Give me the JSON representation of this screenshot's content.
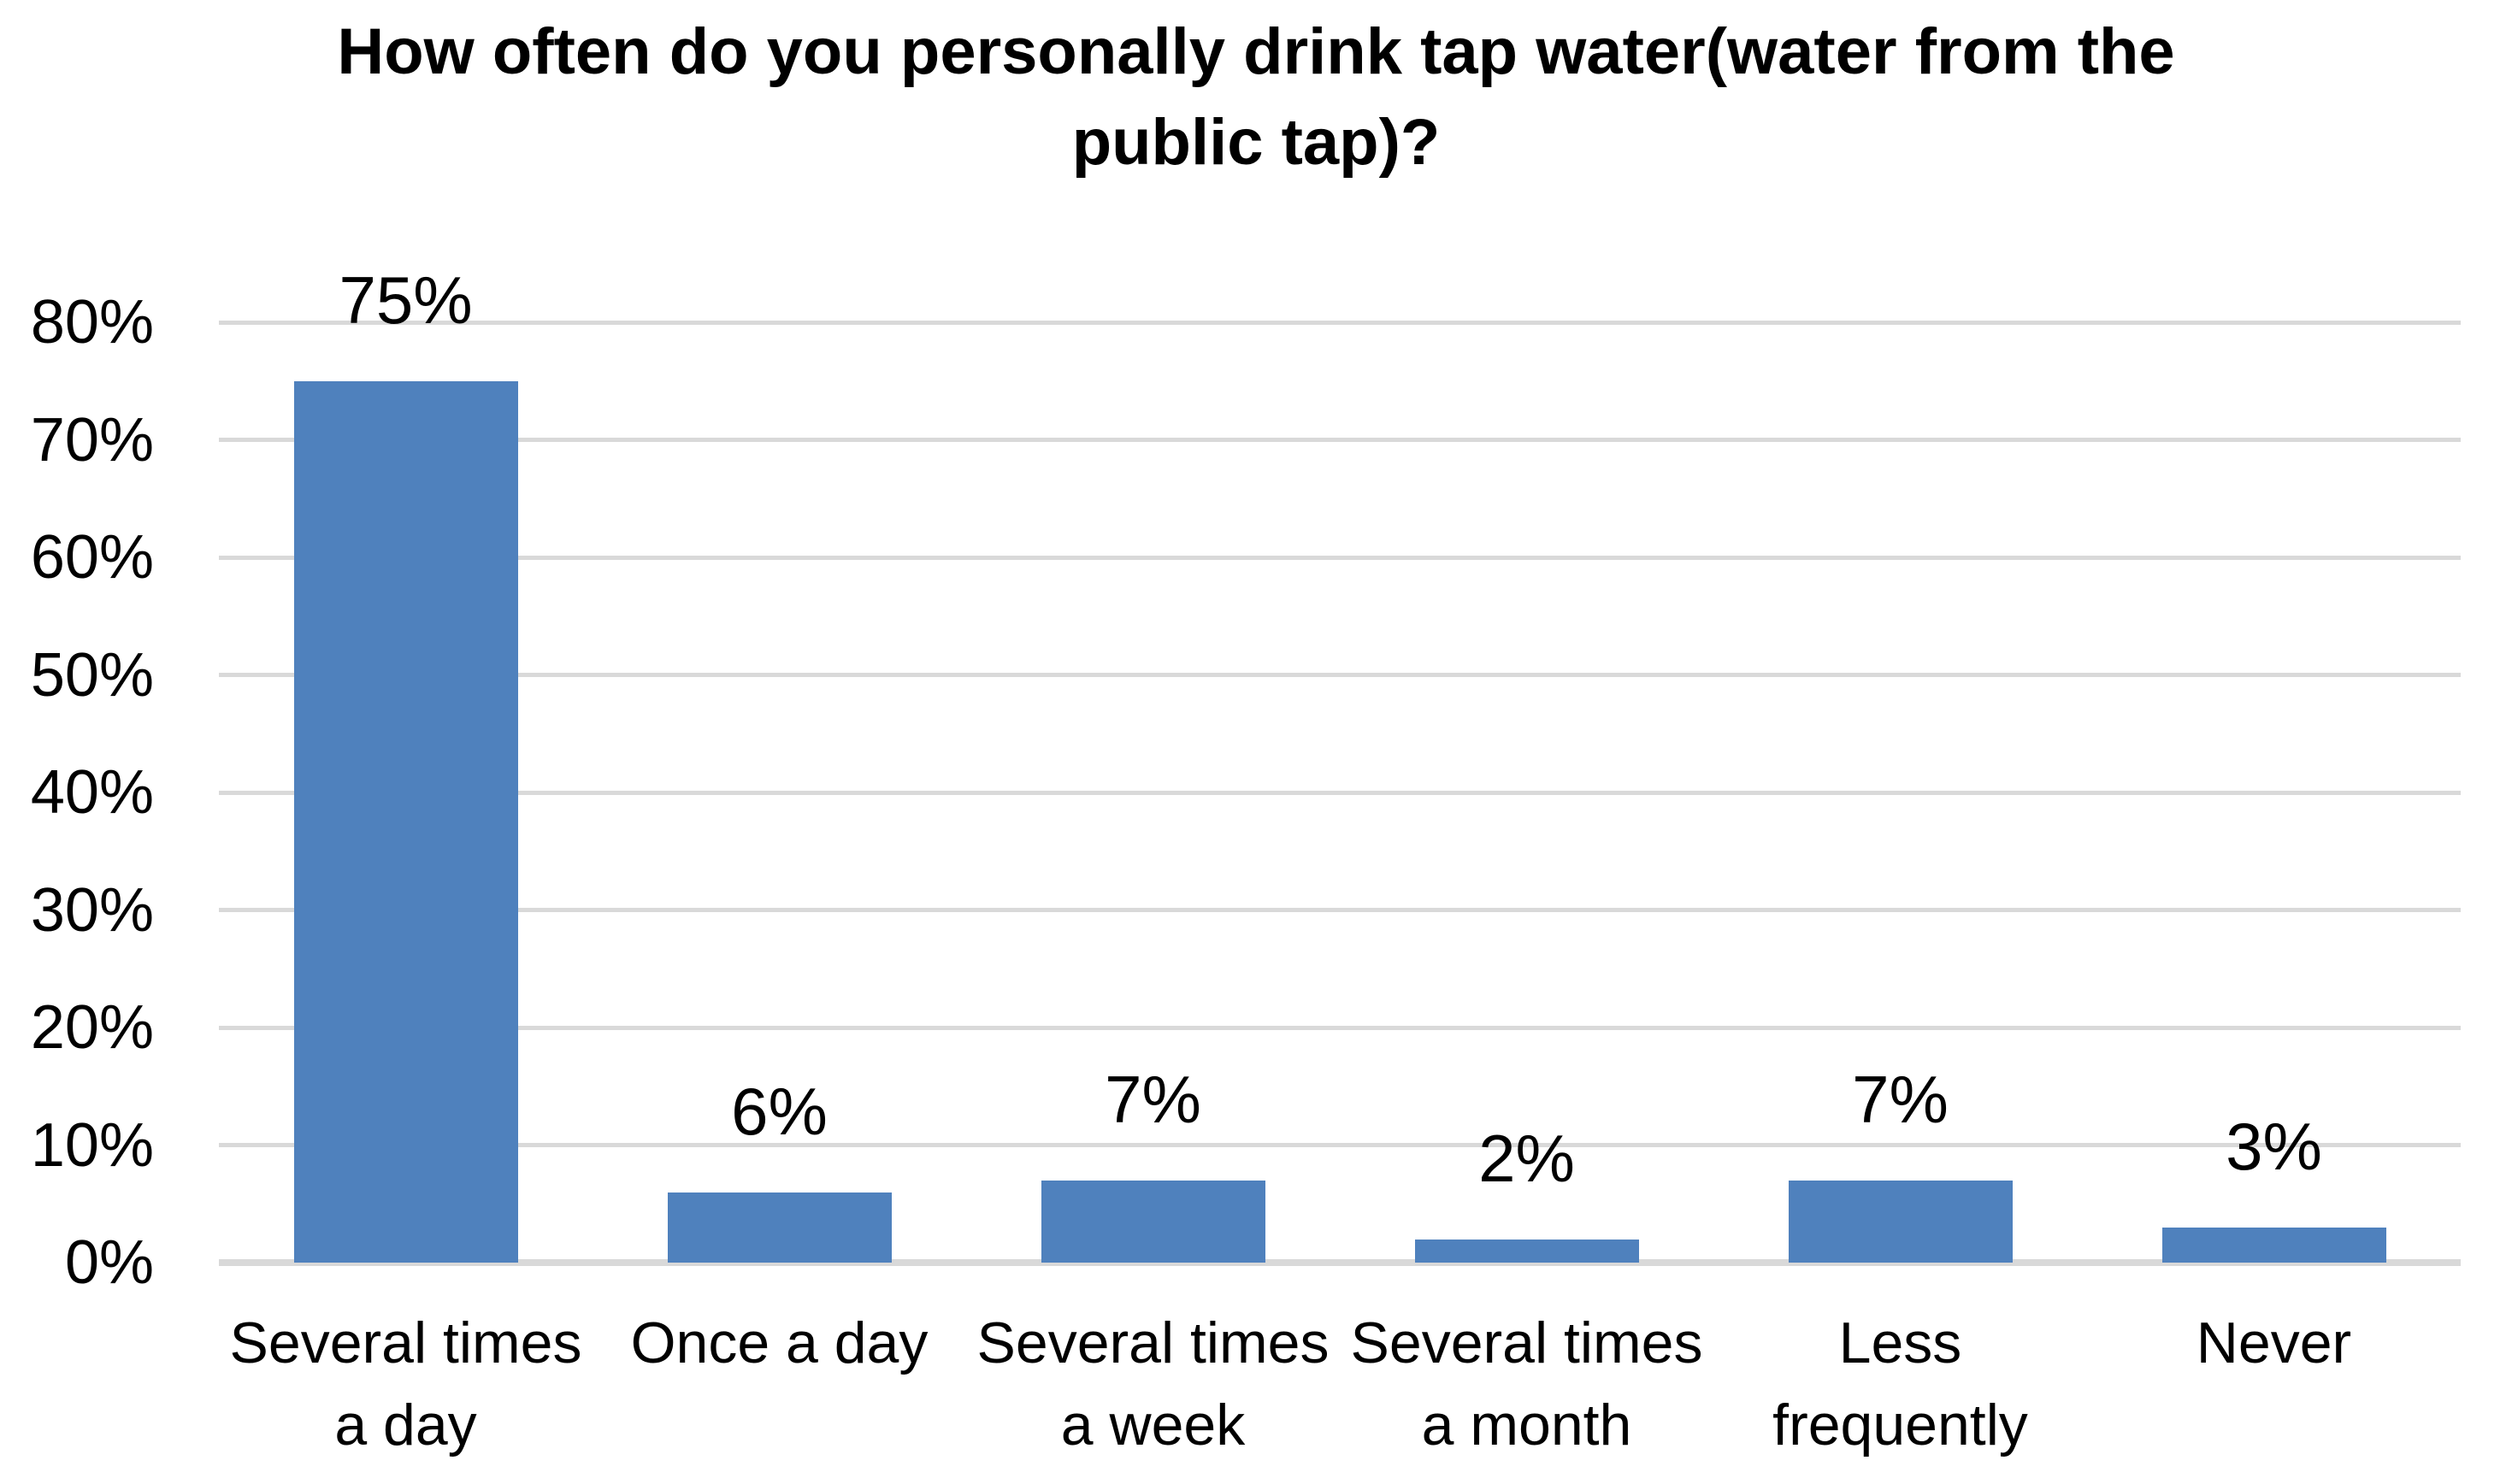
{
  "chart_data": {
    "type": "bar",
    "title": "How often do you personally drink tap water(water from the public tap)?",
    "title_lines": [
      "How often do you personally drink tap water(water from the",
      "public tap)?"
    ],
    "categories": [
      "Several times a day",
      "Once a day",
      "Several times a week",
      "Several times a month",
      "Less frequently",
      "Never"
    ],
    "category_lines": [
      [
        "Several times",
        "a day"
      ],
      [
        "Once a day"
      ],
      [
        "Several times",
        "a week"
      ],
      [
        "Several times",
        "a month"
      ],
      [
        "Less",
        "frequently"
      ],
      [
        "Never"
      ]
    ],
    "values": [
      75,
      6,
      7,
      2,
      7,
      3
    ],
    "data_labels": [
      "75%",
      "6%",
      "7%",
      "2%",
      "7%",
      "3%"
    ],
    "unit": "%",
    "xlabel": "",
    "ylabel": "",
    "ylim": [
      0,
      80
    ],
    "ytick_interval": 10,
    "yticks": [
      "80%",
      "70%",
      "60%",
      "50%",
      "40%",
      "30%",
      "20%",
      "10%",
      "0%"
    ],
    "grid": true,
    "legend": "none",
    "colors": {
      "bar": "#4F81BD",
      "gridline": "#D9D9D9",
      "axis_line": "#D9D9D9",
      "text": "#000000",
      "background": "#FFFFFF"
    }
  }
}
